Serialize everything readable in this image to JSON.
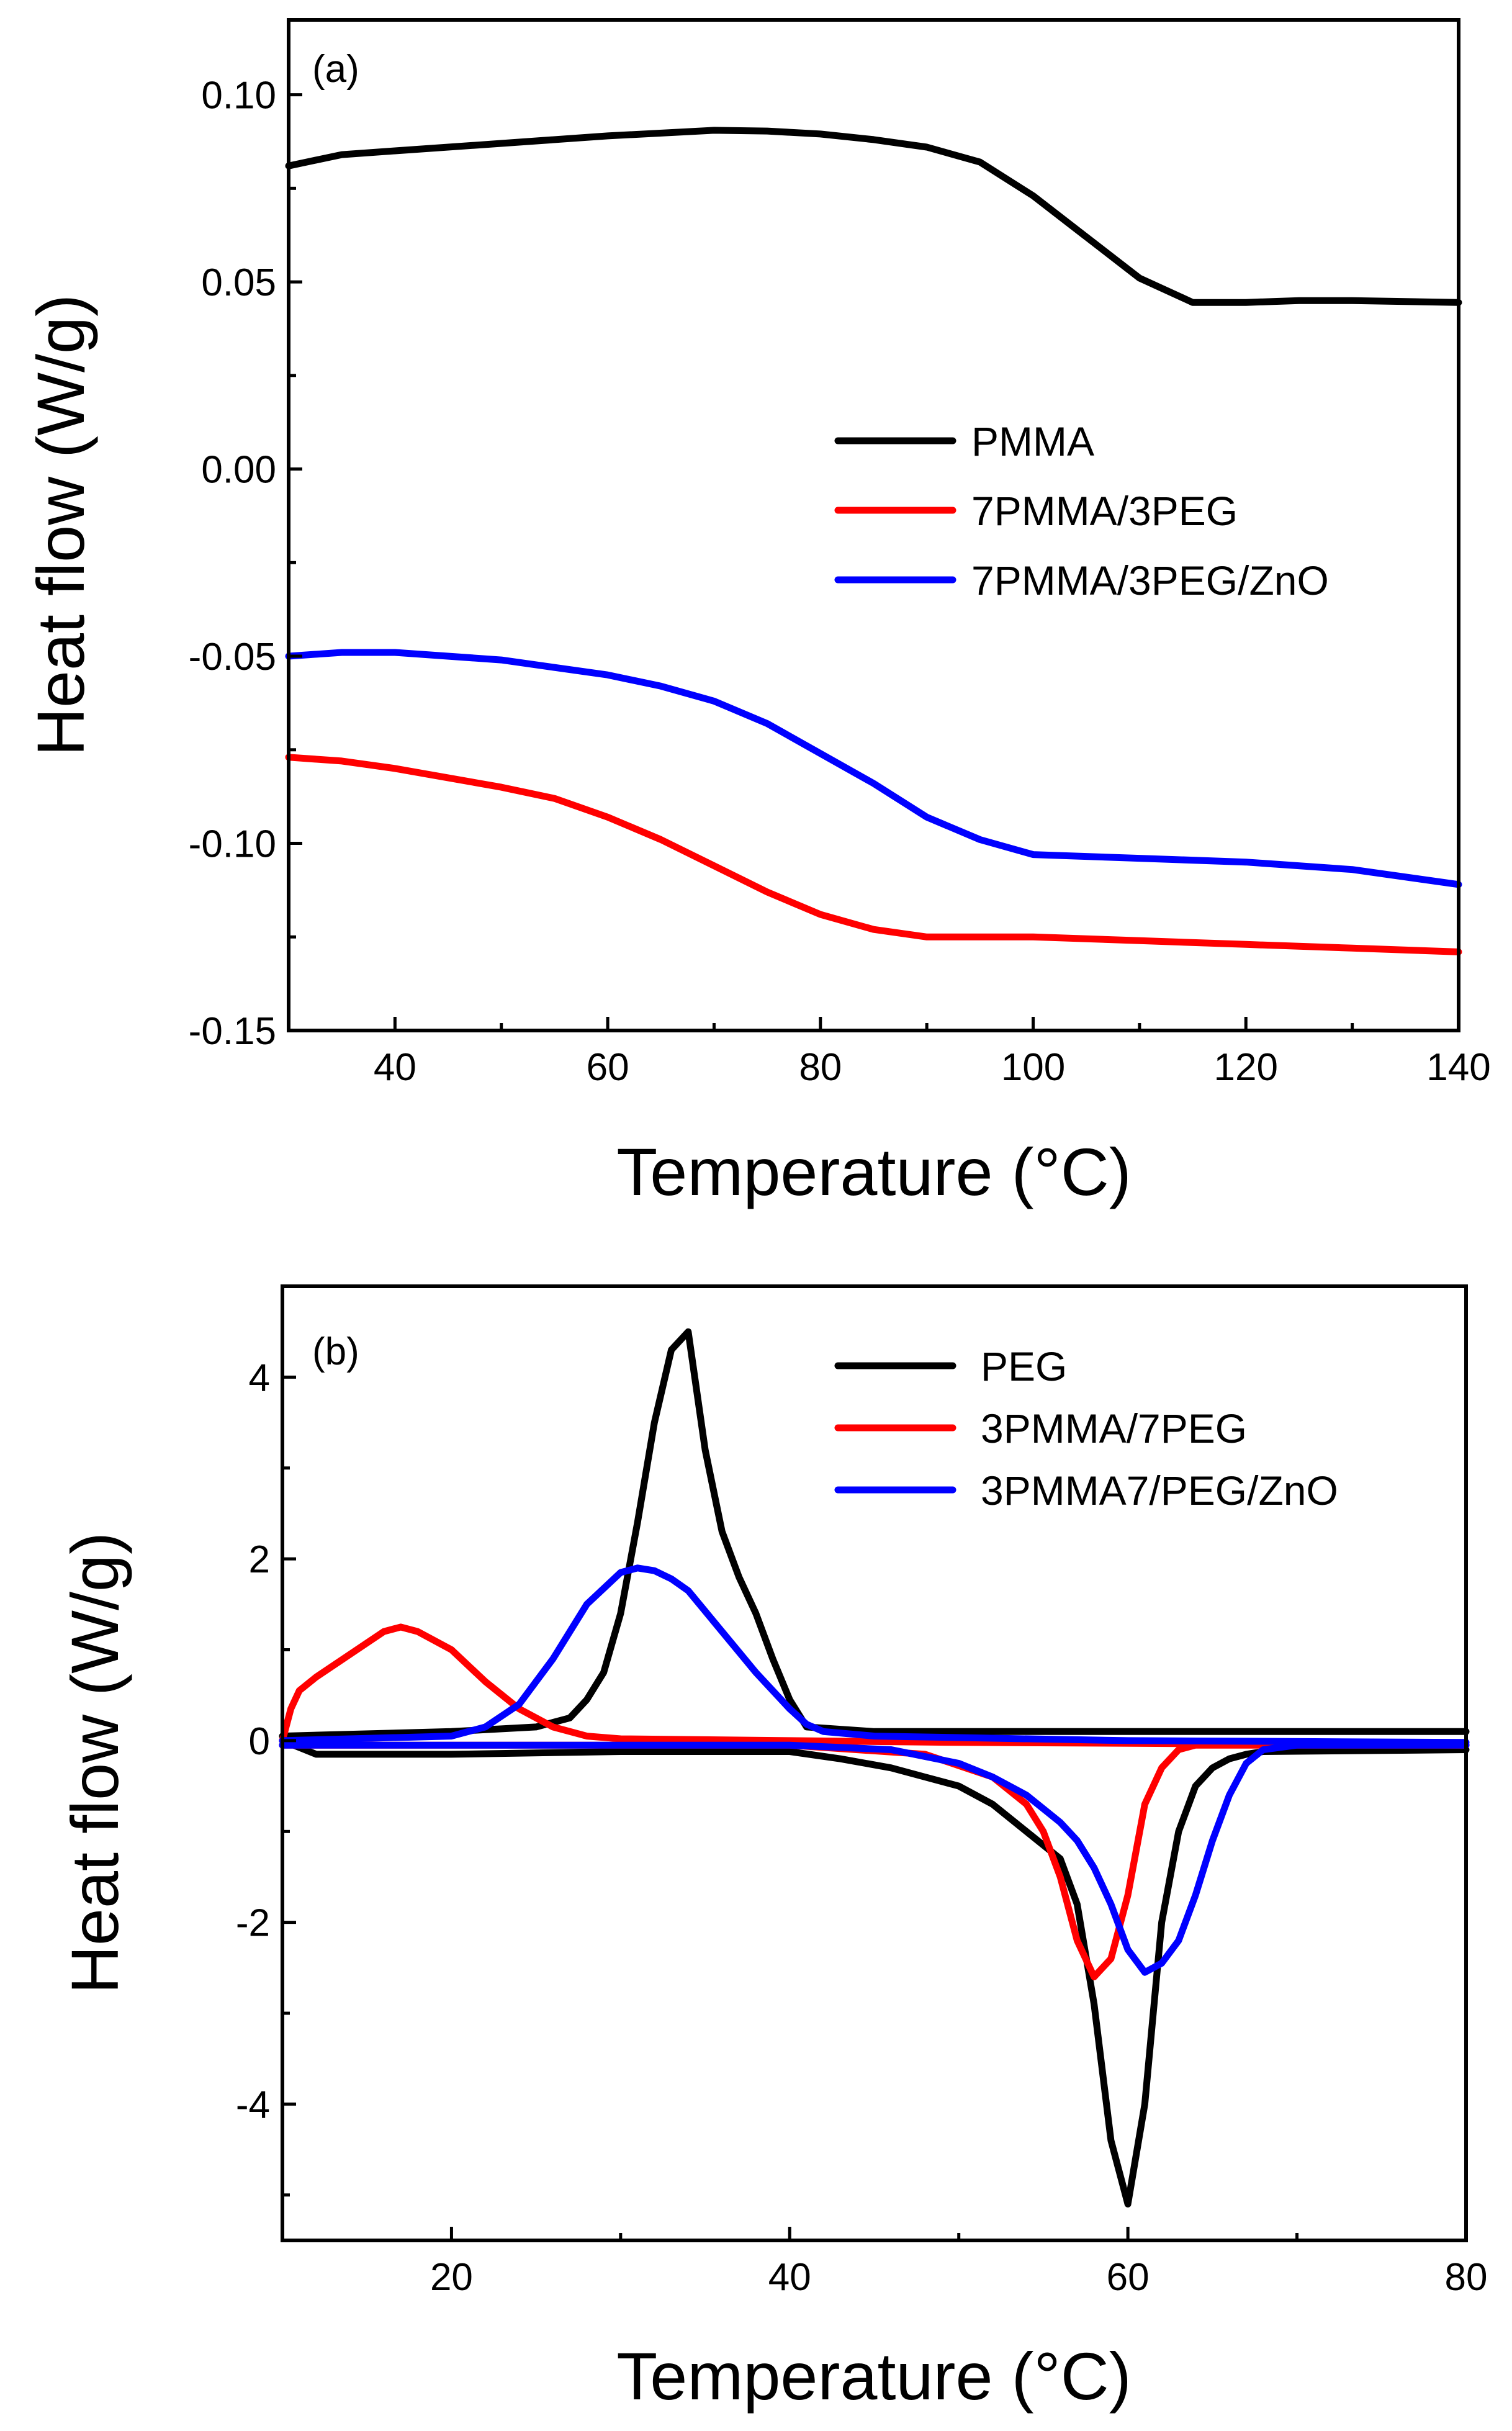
{
  "chart_data": [
    {
      "panel": "(a)",
      "type": "line",
      "xlabel": "Temperature (°C)",
      "ylabel": "Heat flow (W/g)",
      "xlim": [
        30,
        140
      ],
      "ylim": [
        -0.15,
        0.12
      ],
      "xticks": [
        40,
        60,
        80,
        100,
        120,
        140
      ],
      "xtick_labels": [
        "40",
        "60",
        "80",
        "100",
        "120",
        "140"
      ],
      "yticks": [
        -0.15,
        -0.1,
        -0.05,
        0.0,
        0.05,
        0.1
      ],
      "ytick_labels": [
        "-0.15",
        "-0.10",
        "-0.05",
        "0.00",
        "0.05",
        "0.10"
      ],
      "legend_position": "center-right",
      "series": [
        {
          "name": "PMMA",
          "color": "#000000",
          "x": [
            30,
            35,
            40,
            50,
            60,
            70,
            75,
            80,
            85,
            90,
            95,
            100,
            105,
            110,
            115,
            120,
            125,
            130,
            140
          ],
          "y": [
            0.081,
            0.084,
            0.085,
            0.087,
            0.089,
            0.0905,
            0.0903,
            0.0895,
            0.088,
            0.086,
            0.082,
            0.073,
            0.062,
            0.051,
            0.0445,
            0.0445,
            0.045,
            0.045,
            0.0445
          ]
        },
        {
          "name": "7PMMA/3PEG",
          "color": "#ff0000",
          "x": [
            30,
            35,
            40,
            50,
            55,
            60,
            65,
            70,
            75,
            80,
            85,
            90,
            95,
            100,
            110,
            120,
            130,
            140
          ],
          "y": [
            -0.077,
            -0.078,
            -0.08,
            -0.085,
            -0.088,
            -0.093,
            -0.099,
            -0.106,
            -0.113,
            -0.119,
            -0.123,
            -0.125,
            -0.125,
            -0.125,
            -0.126,
            -0.127,
            -0.128,
            -0.129
          ]
        },
        {
          "name": "7PMMA/3PEG/ZnO",
          "color": "#0000ff",
          "x": [
            30,
            35,
            40,
            50,
            60,
            65,
            70,
            75,
            80,
            85,
            90,
            95,
            100,
            110,
            120,
            130,
            140
          ],
          "y": [
            -0.05,
            -0.049,
            -0.049,
            -0.051,
            -0.055,
            -0.058,
            -0.062,
            -0.068,
            -0.076,
            -0.084,
            -0.093,
            -0.099,
            -0.103,
            -0.104,
            -0.105,
            -0.107,
            -0.111
          ]
        }
      ]
    },
    {
      "panel": "(b)",
      "type": "line",
      "xlabel": "Temperature (°C)",
      "ylabel": "Heat flow (W/g)",
      "xlim": [
        10,
        80
      ],
      "ylim": [
        -5.5,
        5.0
      ],
      "xticks": [
        20,
        40,
        60,
        80
      ],
      "xtick_labels": [
        "20",
        "40",
        "60",
        "80"
      ],
      "yticks": [
        -4,
        -2,
        0,
        2,
        4
      ],
      "ytick_labels": [
        "-4",
        "-2",
        "0",
        "2",
        "4"
      ],
      "legend_position": "top-right",
      "series": [
        {
          "name": "PEG",
          "color": "#000000",
          "segments": [
            {
              "x": [
                10,
                20,
                25,
                27,
                28,
                29,
                30,
                31,
                32,
                33,
                34,
                35,
                36,
                37,
                38,
                39,
                40,
                41,
                45,
                60,
                80
              ],
              "y": [
                0.05,
                0.1,
                0.15,
                0.25,
                0.45,
                0.75,
                1.4,
                2.4,
                3.5,
                4.3,
                4.5,
                3.2,
                2.3,
                1.8,
                1.4,
                0.9,
                0.45,
                0.15,
                0.1,
                0.1,
                0.1
              ]
            },
            {
              "x": [
                10,
                12,
                20,
                30,
                40,
                43,
                46,
                48,
                50,
                52,
                54,
                56,
                57,
                58,
                59,
                60,
                61,
                62,
                63,
                64,
                65,
                66,
                67,
                68,
                80
              ],
              "y": [
                0.0,
                -0.15,
                -0.15,
                -0.12,
                -0.12,
                -0.2,
                -0.3,
                -0.4,
                -0.5,
                -0.7,
                -1.0,
                -1.3,
                -1.8,
                -2.9,
                -4.4,
                -5.1,
                -4.0,
                -2.0,
                -1.0,
                -0.5,
                -0.3,
                -0.2,
                -0.15,
                -0.12,
                -0.1
              ]
            }
          ]
        },
        {
          "name": "3PMMA/7PEG",
          "color": "#ff0000",
          "segments": [
            {
              "x": [
                10,
                10.5,
                11,
                12,
                14,
                16,
                17,
                18,
                20,
                22,
                24,
                26,
                28,
                30,
                40,
                50,
                80
              ],
              "y": [
                0.0,
                0.35,
                0.55,
                0.7,
                0.95,
                1.2,
                1.25,
                1.2,
                1.0,
                0.65,
                0.35,
                0.15,
                0.05,
                0.02,
                0.0,
                -0.02,
                -0.05
              ]
            },
            {
              "x": [
                10,
                20,
                40,
                48,
                52,
                54,
                55,
                56,
                57,
                58,
                59,
                60,
                61,
                62,
                63,
                64,
                66,
                80
              ],
              "y": [
                -0.05,
                -0.05,
                -0.05,
                -0.15,
                -0.4,
                -0.7,
                -1.0,
                -1.5,
                -2.2,
                -2.6,
                -2.4,
                -1.7,
                -0.7,
                -0.3,
                -0.1,
                -0.05,
                -0.05,
                -0.05
              ]
            }
          ]
        },
        {
          "name": "3PMMA7/PEG/ZnO",
          "color": "#0000ff",
          "segments": [
            {
              "x": [
                10,
                20,
                22,
                24,
                26,
                28,
                30,
                31,
                32,
                33,
                34,
                36,
                38,
                40,
                41,
                42,
                45,
                60,
                80
              ],
              "y": [
                0.0,
                0.05,
                0.15,
                0.4,
                0.9,
                1.5,
                1.85,
                1.9,
                1.87,
                1.78,
                1.65,
                1.2,
                0.75,
                0.35,
                0.18,
                0.1,
                0.05,
                0.0,
                -0.02
              ]
            },
            {
              "x": [
                10,
                30,
                40,
                46,
                50,
                52,
                54,
                56,
                57,
                58,
                59,
                60,
                61,
                62,
                63,
                64,
                65,
                66,
                67,
                68,
                70,
                80
              ],
              "y": [
                -0.05,
                -0.05,
                -0.05,
                -0.1,
                -0.25,
                -0.4,
                -0.6,
                -0.9,
                -1.1,
                -1.4,
                -1.8,
                -2.3,
                -2.55,
                -2.45,
                -2.2,
                -1.7,
                -1.1,
                -0.6,
                -0.25,
                -0.1,
                -0.05,
                -0.05
              ]
            }
          ]
        }
      ]
    }
  ]
}
